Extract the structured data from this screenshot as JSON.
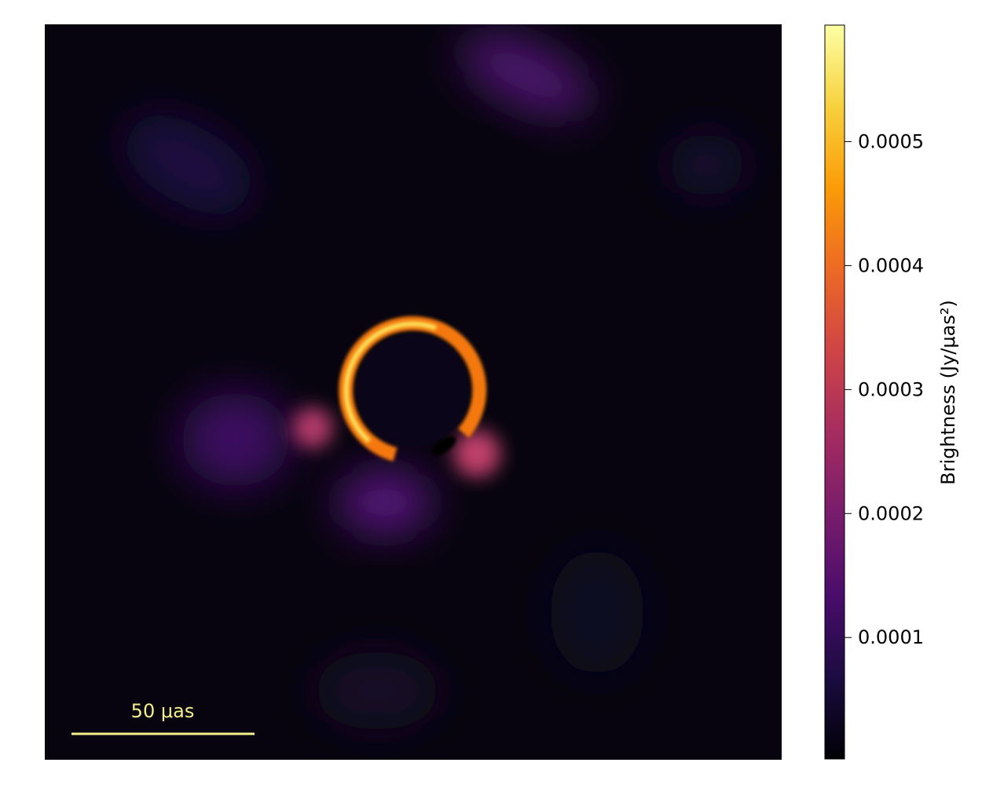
{
  "chart_data": {
    "type": "image",
    "colorbar_label": "Brightness (Jy/μas²)",
    "colormap": "inferno",
    "clim": [
      2e-06,
      0.000594
    ],
    "cticks": [
      0.0001,
      0.0002,
      0.0003,
      0.0004,
      0.0005
    ],
    "scale_bar_label": "50 μas",
    "scale_bar_color": "#f4f08c"
  }
}
